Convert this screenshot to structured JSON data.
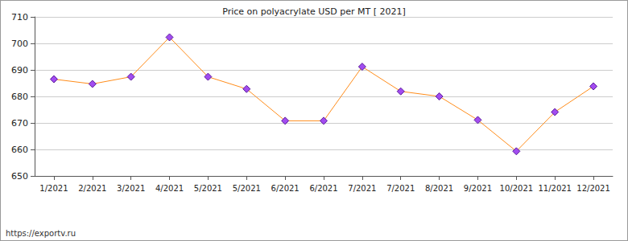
{
  "chart_data": {
    "type": "line",
    "title": "Price on polyacrylate USD per MT [ 2021]",
    "categories": [
      "1/2021",
      "2/2021",
      "3/2021",
      "4/2021",
      "5/2021",
      "5/2021",
      "6/2021",
      "6/2021",
      "7/2021",
      "7/2021",
      "8/2021",
      "9/2021",
      "10/2021",
      "11/2021",
      "12/2021"
    ],
    "values": [
      686.5,
      684.7,
      687.4,
      702.3,
      687.4,
      682.8,
      670.8,
      670.8,
      691.2,
      681.9,
      680.0,
      671.1,
      659.3,
      674.1,
      683.8
    ],
    "color": "#ff8c1a",
    "marker": "diamond",
    "ylim": [
      650,
      710
    ],
    "yticks": [
      650,
      660,
      670,
      680,
      690,
      700,
      710
    ],
    "grid": true,
    "annotations": [
      "https://exportv.ru"
    ]
  }
}
